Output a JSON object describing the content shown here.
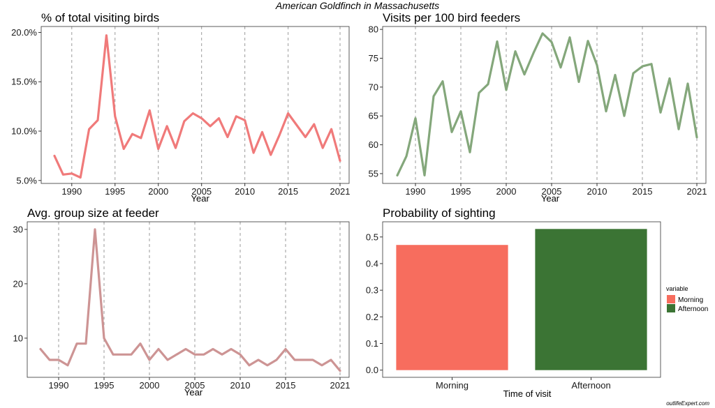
{
  "figure": {
    "title": "American Goldfinch in Massachusetts",
    "credit": "outlifeExpert.com"
  },
  "chart_data": [
    {
      "type": "line",
      "title": "% of total visiting birds",
      "xlabel": "Year",
      "ylabel": "",
      "color": "#f07a7a",
      "xlim": [
        1987.3,
        1921.7
      ],
      "xlim_note": "",
      "x_ticks": [
        1990,
        1995,
        2000,
        2005,
        2010,
        2015,
        2021
      ],
      "ylim": [
        4.7,
        20.6
      ],
      "y_ticks": [
        5,
        10,
        15,
        20
      ],
      "y_tick_labels": [
        "5.0%",
        "10.0%",
        "15.0%",
        "20.0%"
      ],
      "grid": "vertical-dashed",
      "x": [
        1988,
        1989,
        1990,
        1991,
        1992,
        1993,
        1994,
        1995,
        1996,
        1997,
        1998,
        1999,
        2000,
        2001,
        2002,
        2003,
        2004,
        2005,
        2006,
        2007,
        2008,
        2009,
        2010,
        2011,
        2012,
        2013,
        2014,
        2015,
        2016,
        2017,
        2018,
        2019,
        2020,
        2021
      ],
      "values": [
        7.5,
        5.6,
        5.7,
        5.3,
        10.2,
        11.1,
        19.7,
        11.5,
        8.2,
        9.7,
        9.3,
        12.1,
        8.2,
        10.5,
        8.3,
        11.0,
        11.8,
        11.3,
        10.5,
        11.3,
        9.4,
        11.5,
        11.1,
        7.8,
        9.9,
        7.6,
        9.6,
        11.8,
        10.6,
        9.4,
        10.7,
        8.3,
        10.2,
        7.0
      ]
    },
    {
      "type": "line",
      "title": "Visits per 100 bird feeders",
      "xlabel": "Year",
      "ylabel": "",
      "color": "#84a77b",
      "xlim": [
        1987.3,
        1921.7
      ],
      "x_ticks": [
        1990,
        1995,
        2000,
        2005,
        2010,
        2015,
        2021
      ],
      "ylim": [
        53.3,
        80.5
      ],
      "y_ticks": [
        55,
        60,
        65,
        70,
        75,
        80
      ],
      "y_tick_labels": [
        "55",
        "60",
        "65",
        "70",
        "75",
        "80"
      ],
      "grid": "vertical-dashed",
      "x": [
        1988,
        1989,
        1990,
        1991,
        1992,
        1993,
        1994,
        1995,
        1996,
        1997,
        1998,
        1999,
        2000,
        2001,
        2002,
        2003,
        2004,
        2005,
        2006,
        2007,
        2008,
        2009,
        2010,
        2011,
        2012,
        2013,
        2014,
        2015,
        2016,
        2017,
        2018,
        2019,
        2020,
        2021
      ],
      "values": [
        54.7,
        58.0,
        64.6,
        54.7,
        68.4,
        71.0,
        62.2,
        65.8,
        58.7,
        69.0,
        70.5,
        77.9,
        69.5,
        76.2,
        72.2,
        75.9,
        79.3,
        77.8,
        73.4,
        78.6,
        70.9,
        78.0,
        73.8,
        65.8,
        72.1,
        65.0,
        72.4,
        73.6,
        74.0,
        65.6,
        71.5,
        62.7,
        70.6,
        61.3
      ]
    },
    {
      "type": "line",
      "title": "Avg. group size at feeder",
      "xlabel": "Year",
      "ylabel": "",
      "color": "#cd9494",
      "xlim": [
        1987.3,
        1921.7
      ],
      "x_ticks": [
        1990,
        1995,
        2000,
        2005,
        2010,
        2015,
        2021
      ],
      "ylim": [
        2.8,
        31.4
      ],
      "y_ticks": [
        10,
        20,
        30
      ],
      "y_tick_labels": [
        "10",
        "20",
        "30"
      ],
      "grid": "vertical-dashed",
      "x": [
        1988,
        1989,
        1990,
        1991,
        1992,
        1993,
        1994,
        1995,
        1996,
        1997,
        1998,
        1999,
        2000,
        2001,
        2002,
        2003,
        2004,
        2005,
        2006,
        2007,
        2008,
        2009,
        2010,
        2011,
        2012,
        2013,
        2014,
        2015,
        2016,
        2017,
        2018,
        2019,
        2020,
        2021
      ],
      "values": [
        8,
        6,
        6,
        5,
        9,
        9,
        30,
        10,
        7,
        7,
        7,
        9,
        6,
        8,
        6,
        7,
        8,
        7,
        7,
        8,
        7,
        8,
        7,
        5,
        6,
        5,
        6,
        8,
        6,
        6,
        6,
        5,
        6,
        4
      ]
    },
    {
      "type": "bar",
      "title": "Probability of sighting",
      "xlabel": "Time of visit",
      "ylabel": "",
      "categories": [
        "Morning",
        "Afternoon"
      ],
      "values": [
        0.47,
        0.53
      ],
      "colors": [
        "#f76d5e",
        "#3b7434"
      ],
      "ylim": [
        -0.027,
        0.557
      ],
      "y_ticks": [
        0.0,
        0.1,
        0.2,
        0.3,
        0.4,
        0.5
      ],
      "y_tick_labels": [
        "0.0",
        "0.1",
        "0.2",
        "0.3",
        "0.4",
        "0.5"
      ],
      "grid": "none",
      "legend": {
        "title": "variable",
        "position": "right",
        "entries": [
          "Morning",
          "Afternoon"
        ]
      }
    }
  ]
}
